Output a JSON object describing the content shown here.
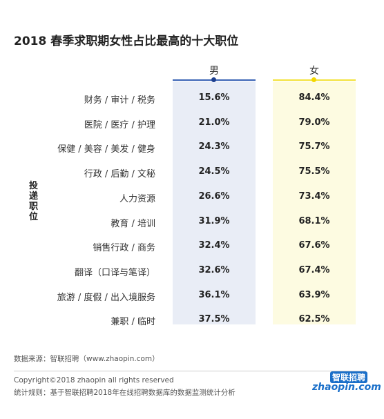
{
  "title": "2018 春季求职期女性占比最高的十大职位",
  "table": {
    "columns": [
      "男",
      "女"
    ],
    "row_label": "投递职位",
    "rows": [
      [
        "财务 / 审计 / 税务",
        "15.6%",
        "84.4%"
      ],
      [
        "医院 / 医疗 / 护理",
        "21.0%",
        "79.0%"
      ],
      [
        "保健 / 美容 / 美发 / 健身",
        "24.3%",
        "75.7%"
      ],
      [
        "行政 / 后勤 / 文秘",
        "24.5%",
        "75.5%"
      ],
      [
        "人力资源",
        "26.6%",
        "73.4%"
      ],
      [
        "教育 / 培训",
        "31.9%",
        "68.1%"
      ],
      [
        "销售行政 / 商务",
        "32.4%",
        "67.6%"
      ],
      [
        "翻译（口译与笔译）",
        "32.6%",
        "67.4%"
      ],
      [
        "旅游 / 度假 / 出入境服务",
        "36.1%",
        "63.9%"
      ],
      [
        "兼职 / 临时",
        "37.5%",
        "62.5%"
      ]
    ]
  },
  "footer": {
    "source": "数据来源：智联招聘（www.zhaopin.com）",
    "copyright": "Copyright©2018 zhaopin all rights reserved",
    "rule": "统计规则：基于智联招聘2018年在线招聘数据库的数据监测统计分析",
    "logo_name": "智联招聘",
    "logo_url": "zhaopin.com"
  }
}
